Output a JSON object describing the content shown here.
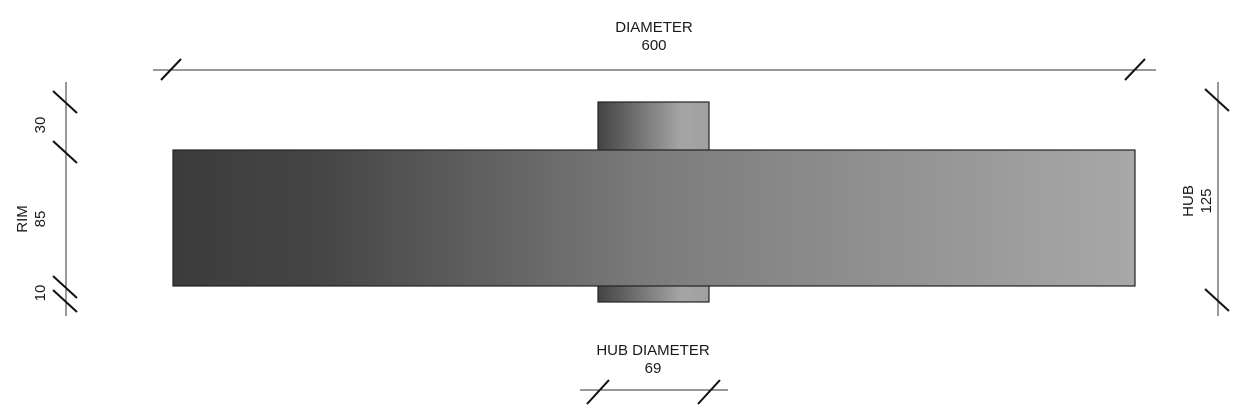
{
  "dimensions": {
    "diameter": {
      "label": "DIAMETER",
      "value": "600"
    },
    "hub_diameter": {
      "label": "HUB DIAMETER",
      "value": "69"
    },
    "rim": {
      "label": "RIM",
      "value": "85"
    },
    "top_offset": {
      "value": "30"
    },
    "bottom_offset": {
      "value": "10"
    },
    "hub": {
      "label": "HUB",
      "value": "125"
    }
  },
  "colors": {
    "rim_dark": "#3a3a3a",
    "rim_light": "#a9a9a9",
    "line": "#333333"
  }
}
